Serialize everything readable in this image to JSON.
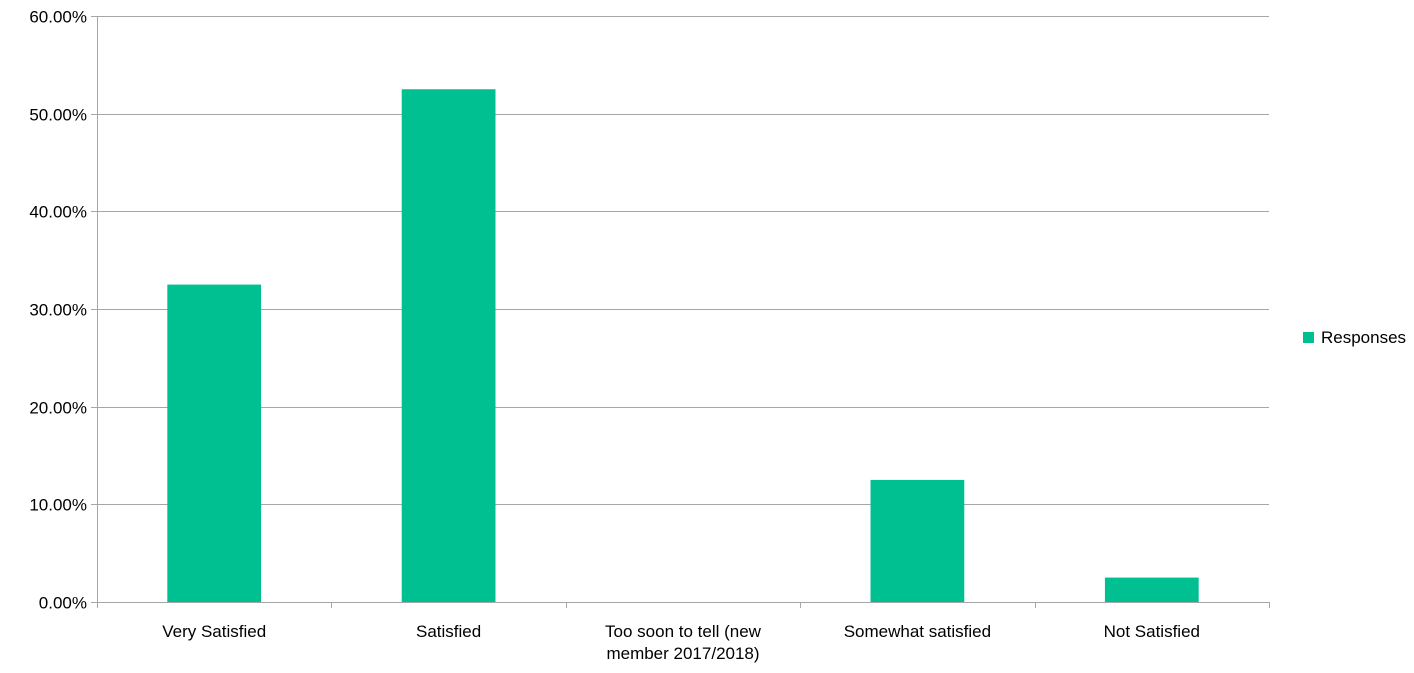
{
  "chart_data": {
    "type": "bar",
    "title": "",
    "xlabel": "",
    "ylabel": "",
    "categories": [
      [
        "Very Satisfied"
      ],
      [
        "Satisfied"
      ],
      [
        "Too soon to tell (new",
        "member 2017/2018)"
      ],
      [
        "Somewhat satisfied"
      ],
      [
        "Not Satisfied"
      ]
    ],
    "series": [
      {
        "name": "Responses",
        "values": [
          32.5,
          52.5,
          0,
          12.5,
          2.5
        ],
        "color": "#00bf91"
      }
    ],
    "ylim": [
      0,
      60
    ],
    "yticks": [
      0,
      10,
      20,
      30,
      40,
      50,
      60
    ],
    "ytick_labels": [
      "0.00%",
      "10.00%",
      "20.00%",
      "30.00%",
      "40.00%",
      "50.00%",
      "60.00%"
    ],
    "grid": true,
    "gridline_color": "#a6a6a6",
    "legend_position": "right"
  }
}
